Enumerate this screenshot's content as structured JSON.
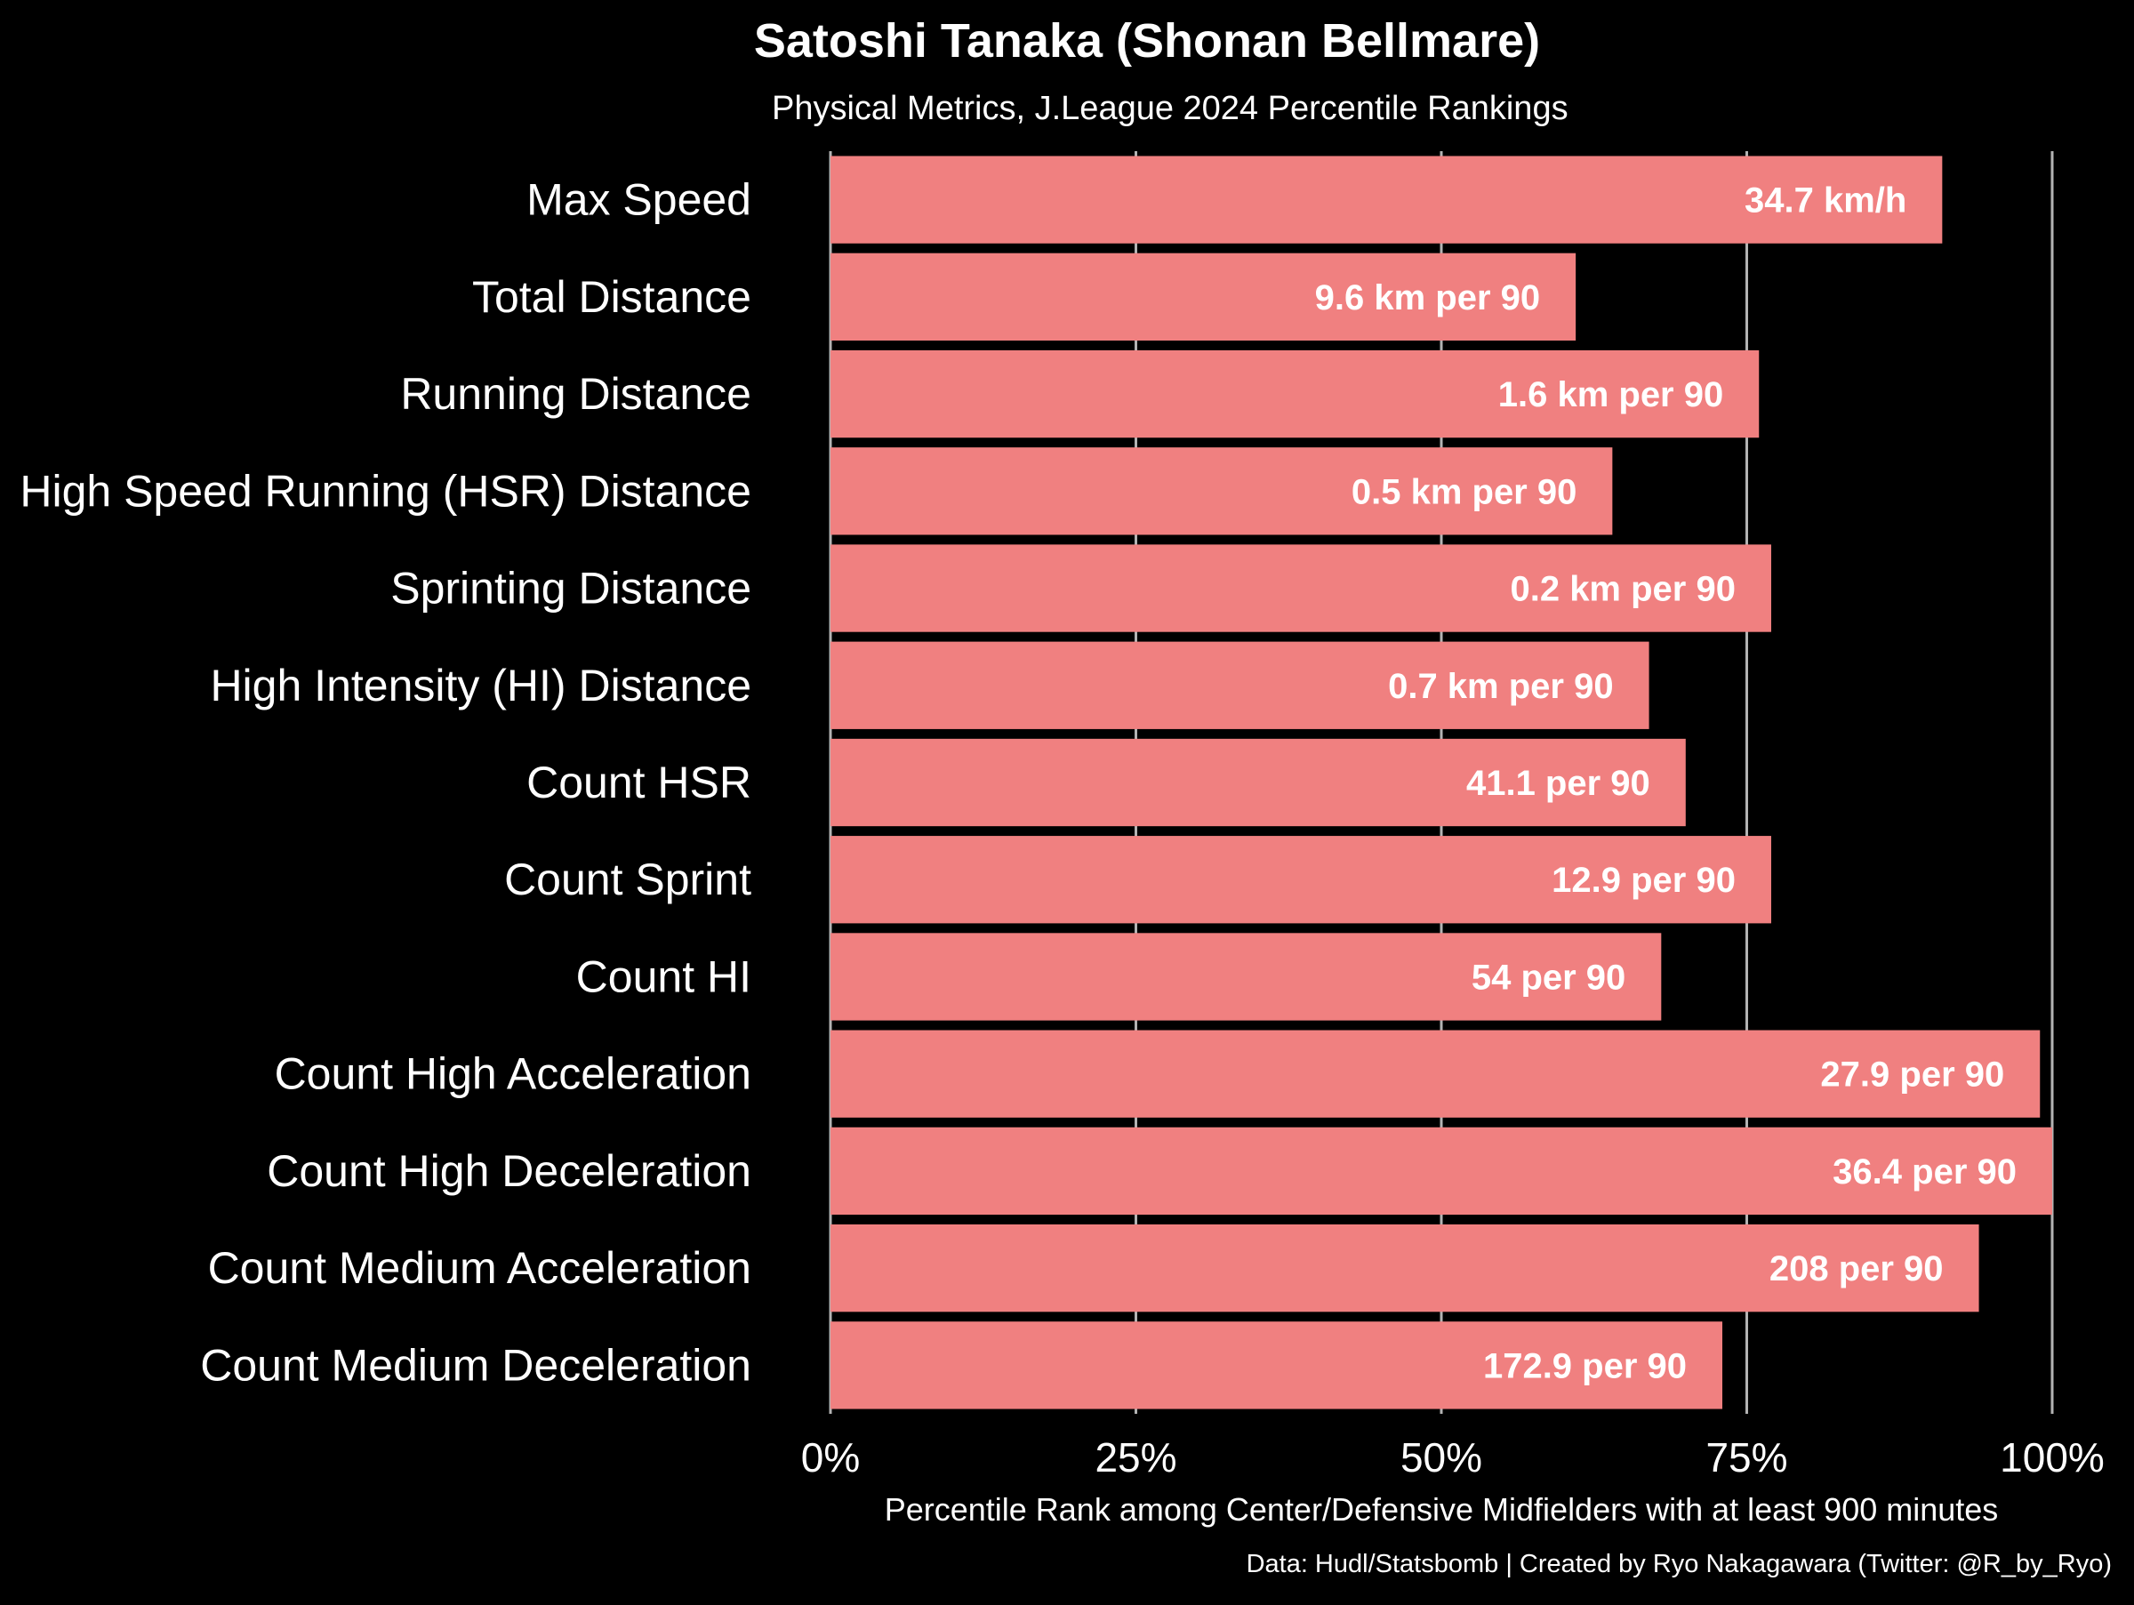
{
  "chart_data": {
    "type": "bar",
    "orientation": "horizontal",
    "title": "Satoshi Tanaka (Shonan Bellmare)",
    "subtitle": "Physical Metrics, J.League 2024 Percentile Rankings",
    "xlabel": "Percentile Rank among Center/Defensive Midfielders with at least 900 minutes",
    "ylabel": "",
    "caption": "Data: Hudl/Statsbomb | Created by Ryo Nakagawara (Twitter: @R_by_Ryo)",
    "xlim": [
      0,
      100
    ],
    "x_ticks": [
      0,
      25,
      50,
      75,
      100
    ],
    "x_tick_labels": [
      "0%",
      "25%",
      "50%",
      "75%",
      "100%"
    ],
    "grid": "vertical major",
    "legend": "none",
    "categories": [
      "Max Speed",
      "Total Distance",
      "Running Distance",
      "High Speed Running (HSR) Distance",
      "Sprinting Distance",
      "High Intensity (HI) Distance",
      "Count HSR",
      "Count Sprint",
      "Count HI",
      "Count High Acceleration",
      "Count High Deceleration",
      "Count Medium Acceleration",
      "Count Medium Deceleration"
    ],
    "values": [
      91,
      61,
      76,
      64,
      77,
      67,
      70,
      77,
      68,
      99,
      100,
      94,
      73
    ],
    "value_labels": [
      "34.7 km/h",
      "9.6 km per 90",
      "1.6 km per 90",
      "0.5 km per 90",
      "0.2 km per 90",
      "0.7 km per 90",
      "41.1 per 90",
      "12.9 per 90",
      "54 per 90",
      "27.9 per 90",
      "36.4 per 90",
      "208 per 90",
      "172.9 per 90"
    ]
  },
  "colors": {
    "background": "#000000",
    "bar": "#f08080",
    "grid": "#b3b3b3",
    "text": "#ffffff"
  }
}
